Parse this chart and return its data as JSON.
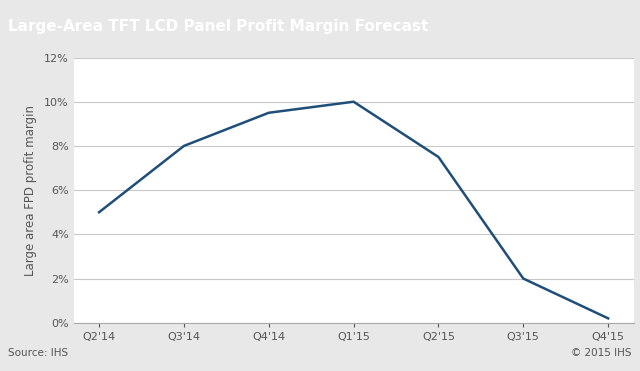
{
  "title": "Large-Area TFT LCD Panel Profit Margin Forecast",
  "title_bg_color": "#6d6e71",
  "title_text_color": "#ffffff",
  "ylabel": "Large area FPD profit margin",
  "source_text": "Source: IHS",
  "copyright_text": "© 2015 IHS",
  "x_labels": [
    "Q2'14",
    "Q3'14",
    "Q4'14",
    "Q1'15",
    "Q2'15",
    "Q3'15",
    "Q4'15"
  ],
  "y_values": [
    0.05,
    0.08,
    0.095,
    0.1,
    0.075,
    0.02,
    0.002
  ],
  "line_color": "#1f4e79",
  "line_width": 1.8,
  "ylim": [
    0,
    0.12
  ],
  "yticks": [
    0,
    0.02,
    0.04,
    0.06,
    0.08,
    0.1,
    0.12
  ],
  "grid_color": "#c8c8c8",
  "bg_color": "#e8e8e8",
  "plot_bg_color": "#ffffff",
  "axis_label_fontsize": 8.5,
  "title_fontsize": 11,
  "tick_fontsize": 8,
  "footer_fontsize": 7.5
}
